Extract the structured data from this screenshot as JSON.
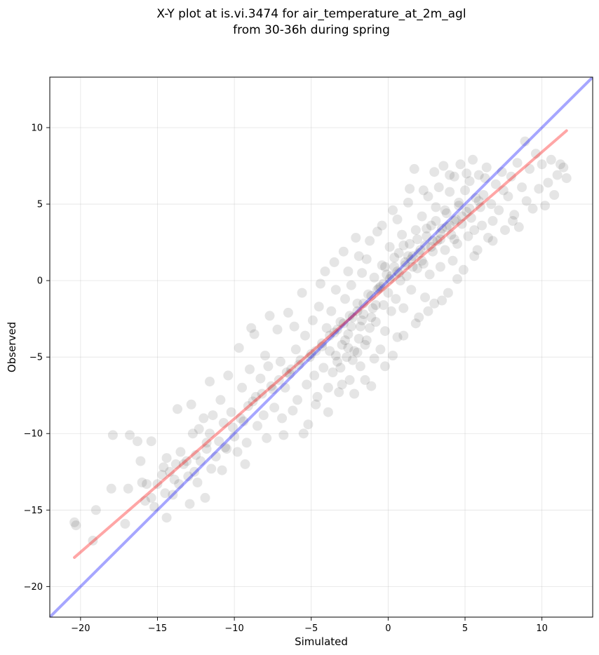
{
  "chart_data": {
    "type": "scatter",
    "title_line1": "X-Y plot at is.vi.3474 for air_temperature_at_2m_agl",
    "title_line2": "from 30-36h during spring",
    "xlabel": "Simulated",
    "ylabel": "Observed",
    "xlim": [
      -22,
      13.3
    ],
    "ylim": [
      -22,
      13.3
    ],
    "xticks": [
      -20,
      -15,
      -10,
      -5,
      0,
      5,
      10
    ],
    "yticks": [
      -20,
      -15,
      -10,
      -5,
      0,
      5,
      10
    ],
    "xtick_labels": [
      "−20",
      "−15",
      "−10",
      "−5",
      "0",
      "5",
      "10"
    ],
    "ytick_labels": [
      "−20",
      "−15",
      "−10",
      "−5",
      "0",
      "5",
      "10"
    ],
    "grid": true,
    "point_color": "#000000",
    "point_alpha": 0.1,
    "reference_line": {
      "color": "#0000ff",
      "alpha": 0.35,
      "slope": 1,
      "intercept": 0
    },
    "fit_line": {
      "color": "#ff0000",
      "alpha": 0.35,
      "x": [
        -20.4,
        11.6
      ],
      "y": [
        -18.1,
        9.8
      ]
    },
    "points": [
      [
        -20.4,
        -15.8
      ],
      [
        -20.3,
        -16.0
      ],
      [
        -19.2,
        -17.0
      ],
      [
        -19.0,
        -15.0
      ],
      [
        -17.9,
        -10.1
      ],
      [
        -18.0,
        -13.6
      ],
      [
        -17.1,
        -15.9
      ],
      [
        -16.9,
        -13.6
      ],
      [
        -16.8,
        -10.1
      ],
      [
        -16.3,
        -10.5
      ],
      [
        -16.1,
        -11.8
      ],
      [
        -16.0,
        -13.2
      ],
      [
        -15.7,
        -13.3
      ],
      [
        -15.4,
        -10.5
      ],
      [
        -15.4,
        -14.2
      ],
      [
        -15.8,
        -14.4
      ],
      [
        -15.2,
        -14.8
      ],
      [
        -15.0,
        -13.3
      ],
      [
        -14.7,
        -12.7
      ],
      [
        -14.5,
        -13.9
      ],
      [
        -14.4,
        -15.5
      ],
      [
        -14.4,
        -11.6
      ],
      [
        -14.2,
        -12.5
      ],
      [
        -14.0,
        -14.0
      ],
      [
        -13.8,
        -12.0
      ],
      [
        -13.6,
        -13.3
      ],
      [
        -13.5,
        -11.2
      ],
      [
        -13.3,
        -12.0
      ],
      [
        -13.1,
        -11.8
      ],
      [
        -13.0,
        -12.8
      ],
      [
        -12.9,
        -14.6
      ],
      [
        -12.8,
        -8.1
      ],
      [
        -12.7,
        -10.0
      ],
      [
        -12.6,
        -12.5
      ],
      [
        -12.4,
        -13.2
      ],
      [
        -12.2,
        -11.8
      ],
      [
        -12.0,
        -9.0
      ],
      [
        -11.9,
        -14.2
      ],
      [
        -11.8,
        -11.0
      ],
      [
        -11.6,
        -10.0
      ],
      [
        -11.5,
        -12.3
      ],
      [
        -11.4,
        -8.8
      ],
      [
        -11.2,
        -11.5
      ],
      [
        -11.0,
        -10.5
      ],
      [
        -10.9,
        -7.8
      ],
      [
        -10.7,
        -9.3
      ],
      [
        -10.5,
        -11.0
      ],
      [
        -10.4,
        -6.2
      ],
      [
        -10.2,
        -8.6
      ],
      [
        -10.0,
        -10.2
      ],
      [
        -9.8,
        -11.2
      ],
      [
        -9.7,
        -4.4
      ],
      [
        -9.5,
        -7.0
      ],
      [
        -9.4,
        -9.2
      ],
      [
        -9.2,
        -10.6
      ],
      [
        -9.0,
        -5.8
      ],
      [
        -8.8,
        -7.9
      ],
      [
        -8.7,
        -3.5
      ],
      [
        -8.5,
        -9.5
      ],
      [
        -8.3,
        -6.4
      ],
      [
        -8.1,
        -8.8
      ],
      [
        -8.0,
        -4.9
      ],
      [
        -7.9,
        -10.3
      ],
      [
        -7.8,
        -5.6
      ],
      [
        -7.6,
        -6.9
      ],
      [
        -7.4,
        -8.3
      ],
      [
        -7.2,
        -3.2
      ],
      [
        -7.0,
        -5.3
      ],
      [
        -6.9,
        -9.0
      ],
      [
        -6.7,
        -7.0
      ],
      [
        -6.5,
        -2.1
      ],
      [
        -6.4,
        -6.1
      ],
      [
        -6.2,
        -8.5
      ],
      [
        -6.0,
        -4.5
      ],
      [
        -5.9,
        -7.8
      ],
      [
        -5.7,
        -5.2
      ],
      [
        -5.6,
        -0.8
      ],
      [
        -5.4,
        -3.6
      ],
      [
        -5.3,
        -6.8
      ],
      [
        -5.2,
        -9.4
      ],
      [
        -5.0,
        -4.8
      ],
      [
        -4.9,
        -2.6
      ],
      [
        -4.8,
        -6.2
      ],
      [
        -4.6,
        -7.6
      ],
      [
        -4.5,
        -1.7
      ],
      [
        -4.3,
        -4.1
      ],
      [
        -4.2,
        -5.7
      ],
      [
        -4.1,
        0.6
      ],
      [
        -4.0,
        -3.1
      ],
      [
        -3.9,
        -8.6
      ],
      [
        -3.8,
        -4.6
      ],
      [
        -3.7,
        -2.0
      ],
      [
        -3.6,
        -6.0
      ],
      [
        -3.5,
        -3.4
      ],
      [
        -3.4,
        -0.6
      ],
      [
        -3.3,
        -5.3
      ],
      [
        -3.2,
        -7.3
      ],
      [
        -3.1,
        -2.7
      ],
      [
        -3.0,
        -4.2
      ],
      [
        -2.9,
        1.9
      ],
      [
        -2.8,
        -1.2
      ],
      [
        -2.7,
        -5.0
      ],
      [
        -2.6,
        -3.5
      ],
      [
        -2.5,
        -6.5
      ],
      [
        -2.4,
        -0.3
      ],
      [
        -2.3,
        -2.4
      ],
      [
        -2.2,
        -4.6
      ],
      [
        -2.1,
        2.8
      ],
      [
        -2.0,
        -1.5
      ],
      [
        -1.9,
        -3.8
      ],
      [
        -1.8,
        -5.6
      ],
      [
        -1.7,
        0.5
      ],
      [
        -1.6,
        -2.2
      ],
      [
        -1.5,
        -4.2
      ],
      [
        -1.4,
        1.4
      ],
      [
        -1.3,
        -0.9
      ],
      [
        -1.2,
        -3.1
      ],
      [
        -1.1,
        -6.9
      ],
      [
        -1.0,
        -1.8
      ],
      [
        -0.9,
        0.2
      ],
      [
        -0.8,
        -2.7
      ],
      [
        -0.7,
        3.2
      ],
      [
        -0.6,
        -0.5
      ],
      [
        -0.5,
        -4.5
      ],
      [
        -0.4,
        1.0
      ],
      [
        -0.3,
        -1.6
      ],
      [
        -0.2,
        -3.3
      ],
      [
        -0.1,
        0.4
      ],
      [
        0.0,
        -0.8
      ],
      [
        0.1,
        2.2
      ],
      [
        0.2,
        -2.0
      ],
      [
        0.3,
        4.6
      ],
      [
        0.4,
        0.9
      ],
      [
        0.5,
        -1.2
      ],
      [
        0.6,
        -3.7
      ],
      [
        0.7,
        1.8
      ],
      [
        0.8,
        0.0
      ],
      [
        0.9,
        3.0
      ],
      [
        1.0,
        -1.8
      ],
      [
        1.1,
        1.2
      ],
      [
        1.2,
        0.3
      ],
      [
        1.3,
        5.1
      ],
      [
        1.4,
        2.4
      ],
      [
        1.5,
        -0.6
      ],
      [
        1.6,
        1.6
      ],
      [
        1.7,
        7.3
      ],
      [
        1.8,
        3.3
      ],
      [
        1.9,
        0.8
      ],
      [
        2.0,
        -2.4
      ],
      [
        2.1,
        2.0
      ],
      [
        2.2,
        4.2
      ],
      [
        2.3,
        1.1
      ],
      [
        2.4,
        -1.1
      ],
      [
        2.5,
        2.9
      ],
      [
        2.6,
        5.5
      ],
      [
        2.7,
        0.4
      ],
      [
        2.8,
        3.6
      ],
      [
        2.9,
        1.9
      ],
      [
        3.0,
        -1.5
      ],
      [
        3.1,
        4.8
      ],
      [
        3.2,
        2.6
      ],
      [
        3.3,
        6.1
      ],
      [
        3.4,
        0.9
      ],
      [
        3.5,
        3.4
      ],
      [
        3.6,
        7.5
      ],
      [
        3.7,
        2.0
      ],
      [
        3.8,
        4.4
      ],
      [
        3.9,
        -0.8
      ],
      [
        4.0,
        5.8
      ],
      [
        4.1,
        3.0
      ],
      [
        4.2,
        1.3
      ],
      [
        4.3,
        6.8
      ],
      [
        4.4,
        4.0
      ],
      [
        4.5,
        2.4
      ],
      [
        4.6,
        5.1
      ],
      [
        4.7,
        7.6
      ],
      [
        4.8,
        3.7
      ],
      [
        4.9,
        0.7
      ],
      [
        5.0,
        5.9
      ],
      [
        5.1,
        4.5
      ],
      [
        5.2,
        2.9
      ],
      [
        5.3,
        6.5
      ],
      [
        5.4,
        4.1
      ],
      [
        5.5,
        7.9
      ],
      [
        5.6,
        3.3
      ],
      [
        5.7,
        5.4
      ],
      [
        5.8,
        2.0
      ],
      [
        5.9,
        6.9
      ],
      [
        6.0,
        4.8
      ],
      [
        6.1,
        3.6
      ],
      [
        6.2,
        5.6
      ],
      [
        6.4,
        7.4
      ],
      [
        6.5,
        2.8
      ],
      [
        6.7,
        5.0
      ],
      [
        6.8,
        3.9
      ],
      [
        7.0,
        6.3
      ],
      [
        7.2,
        4.6
      ],
      [
        7.4,
        7.1
      ],
      [
        7.6,
        3.3
      ],
      [
        7.8,
        5.5
      ],
      [
        8.0,
        6.8
      ],
      [
        8.2,
        4.3
      ],
      [
        8.4,
        7.7
      ],
      [
        8.5,
        3.5
      ],
      [
        8.7,
        6.1
      ],
      [
        8.9,
        9.1
      ],
      [
        9.0,
        5.2
      ],
      [
        9.2,
        7.3
      ],
      [
        9.4,
        4.7
      ],
      [
        9.6,
        8.3
      ],
      [
        9.8,
        6.0
      ],
      [
        10.0,
        7.6
      ],
      [
        10.2,
        4.9
      ],
      [
        10.4,
        6.4
      ],
      [
        10.6,
        7.9
      ],
      [
        10.8,
        5.6
      ],
      [
        11.0,
        6.9
      ],
      [
        11.2,
        7.6
      ],
      [
        11.4,
        7.4
      ],
      [
        11.6,
        6.7
      ],
      [
        -13.7,
        -8.4
      ],
      [
        -12.3,
        -9.7
      ],
      [
        -11.6,
        -6.6
      ],
      [
        -10.8,
        -12.4
      ],
      [
        -9.3,
        -12.0
      ],
      [
        -8.9,
        -3.1
      ],
      [
        -7.7,
        -2.3
      ],
      [
        -6.8,
        -10.1
      ],
      [
        -6.1,
        -3.0
      ],
      [
        -5.5,
        -10.0
      ],
      [
        -4.7,
        -8.1
      ],
      [
        -4.4,
        -0.2
      ],
      [
        -3.9,
        -7.0
      ],
      [
        -3.5,
        1.2
      ],
      [
        -3.0,
        -6.8
      ],
      [
        -2.6,
        0.6
      ],
      [
        -2.2,
        -7.4
      ],
      [
        -1.9,
        1.6
      ],
      [
        -1.5,
        -6.5
      ],
      [
        -1.2,
        2.6
      ],
      [
        -0.9,
        -5.1
      ],
      [
        -0.4,
        3.6
      ],
      [
        -0.2,
        -5.6
      ],
      [
        0.3,
        -4.9
      ],
      [
        0.6,
        4.0
      ],
      [
        1.0,
        -3.6
      ],
      [
        1.4,
        6.0
      ],
      [
        1.8,
        -2.8
      ],
      [
        2.3,
        5.9
      ],
      [
        2.6,
        -2.0
      ],
      [
        3.0,
        7.1
      ],
      [
        3.5,
        -1.3
      ],
      [
        4.0,
        6.9
      ],
      [
        4.5,
        0.1
      ],
      [
        5.1,
        7.0
      ],
      [
        5.6,
        1.6
      ],
      [
        6.3,
        6.7
      ],
      [
        6.8,
        2.6
      ],
      [
        7.5,
        5.9
      ],
      [
        8.1,
        3.9
      ],
      [
        -14.6,
        -12.2
      ],
      [
        -13.9,
        -13.0
      ],
      [
        -12.5,
        -11.4
      ],
      [
        -11.8,
        -10.6
      ],
      [
        -10.6,
        -10.9
      ],
      [
        -10.1,
        -9.6
      ],
      [
        -9.6,
        -9.0
      ],
      [
        -9.1,
        -8.2
      ],
      [
        -8.6,
        -7.6
      ],
      [
        -8.2,
        -7.4
      ],
      [
        -7.5,
        -7.1
      ],
      [
        -7.1,
        -6.5
      ],
      [
        -6.6,
        -6.0
      ],
      [
        -6.3,
        -5.8
      ],
      [
        -5.8,
        -5.5
      ],
      [
        -5.1,
        -5.0
      ],
      [
        -4.7,
        -4.6
      ],
      [
        -4.3,
        -4.3
      ],
      [
        -3.8,
        -3.6
      ],
      [
        -3.3,
        -3.2
      ],
      [
        -2.9,
        -2.8
      ],
      [
        -2.5,
        -2.3
      ],
      [
        -2.0,
        -2.0
      ],
      [
        -1.6,
        -1.5
      ],
      [
        -1.1,
        -1.0
      ],
      [
        -0.7,
        -0.6
      ],
      [
        -0.3,
        -0.2
      ],
      [
        0.2,
        0.3
      ],
      [
        0.6,
        0.6
      ],
      [
        1.1,
        1.0
      ],
      [
        1.5,
        1.4
      ],
      [
        2.0,
        1.8
      ],
      [
        2.4,
        2.3
      ],
      [
        2.9,
        2.6
      ],
      [
        3.4,
        3.1
      ],
      [
        3.8,
        3.5
      ],
      [
        4.3,
        3.9
      ],
      [
        4.8,
        4.2
      ],
      [
        5.3,
        4.7
      ],
      [
        5.9,
        5.2
      ],
      [
        -2.6,
        -4.4
      ],
      [
        -2.3,
        -5.2
      ],
      [
        -2.0,
        -4.7
      ],
      [
        -1.8,
        -3.0
      ],
      [
        -1.4,
        -3.9
      ],
      [
        -1.1,
        -2.4
      ],
      [
        -0.8,
        -1.6
      ],
      [
        -0.5,
        -0.4
      ],
      [
        -0.2,
        0.9
      ],
      [
        0.1,
        0.1
      ],
      [
        0.4,
        1.5
      ],
      [
        0.7,
        0.5
      ],
      [
        1.0,
        2.3
      ],
      [
        1.3,
        1.6
      ],
      [
        1.6,
        0.9
      ],
      [
        1.9,
        2.7
      ],
      [
        2.2,
        1.3
      ],
      [
        2.5,
        3.4
      ],
      [
        2.8,
        2.2
      ],
      [
        3.1,
        3.9
      ],
      [
        3.4,
        2.7
      ],
      [
        3.7,
        4.6
      ],
      [
        4.0,
        3.6
      ],
      [
        4.3,
        2.7
      ],
      [
        4.6,
        4.9
      ],
      [
        -3.4,
        -4.9
      ],
      [
        -3.1,
        -5.7
      ],
      [
        -2.8,
        -3.9
      ],
      [
        -2.4,
        -3.0
      ],
      [
        -1.7,
        -2.6
      ]
    ]
  }
}
